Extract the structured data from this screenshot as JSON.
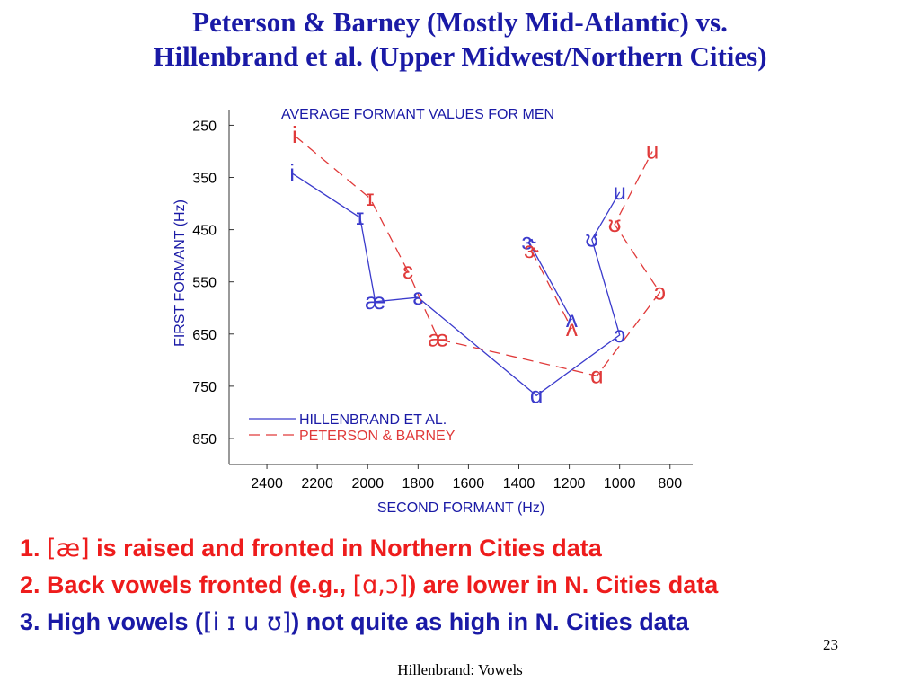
{
  "slide": {
    "title_line1": "Peterson & Barney (Mostly Mid-Atlantic) vs.",
    "title_line2": "Hillenbrand et al. (Upper Midwest/Northern Cities)",
    "bullets": [
      {
        "pre": "1. ",
        "ipa1": "[æ]",
        "mid": " is raised and fronted in Northern Cities data",
        "ipa2": "",
        "post": ""
      },
      {
        "pre": "2. Back vowels fronted (e.g., ",
        "ipa1": "[ɑ,ɔ]",
        "mid": ") are lower in N. Cities data",
        "ipa2": "",
        "post": ""
      },
      {
        "pre": "3. High vowels (",
        "ipa1": "[i ɪ u ʊ]",
        "mid": ") not quite as high in N. Cities data",
        "ipa2": "",
        "post": ""
      }
    ],
    "page_number": "23",
    "footer": "Hillenbrand: Vowels"
  },
  "chart_data": {
    "type": "line",
    "title": "AVERAGE FORMANT VALUES FOR MEN",
    "xlabel": "SECOND FORMANT (Hz)",
    "ylabel": "FIRST FORMANT (Hz)",
    "x_reversed": true,
    "y_reversed": true,
    "xlim": [
      2550,
      710
    ],
    "ylim": [
      220,
      900
    ],
    "xticks": [
      2400,
      2200,
      2000,
      1800,
      1600,
      1400,
      1200,
      1000,
      800
    ],
    "yticks": [
      250,
      350,
      450,
      550,
      650,
      750,
      850
    ],
    "grid": false,
    "legend_position": "bottom-left",
    "colors": {
      "hillenbrand": "#3b3bcc",
      "peterson_barney": "#e03a3a",
      "axis_text": "#1a1aa6",
      "tick_text": "#000000"
    },
    "series": [
      {
        "name": "HILLENBRAND ET AL.",
        "style": "solid",
        "segments": [
          [
            {
              "vowel": "i",
              "f2": 2300,
              "f1": 342
            },
            {
              "vowel": "ɪ",
              "f2": 2030,
              "f1": 427
            },
            {
              "vowel": "æ",
              "f2": 1970,
              "f1": 588
            },
            {
              "vowel": "ɛ",
              "f2": 1800,
              "f1": 580
            },
            {
              "vowel": "ɑ",
              "f2": 1330,
              "f1": 768
            },
            {
              "vowel": "ɔ",
              "f2": 1000,
              "f1": 652
            },
            {
              "vowel": "ʊ",
              "f2": 1110,
              "f1": 469
            },
            {
              "vowel": "u",
              "f2": 1000,
              "f1": 378
            }
          ],
          [
            {
              "vowel": "ɝ",
              "f2": 1360,
              "f1": 474
            },
            {
              "vowel": "ʌ",
              "f2": 1190,
              "f1": 623
            }
          ]
        ]
      },
      {
        "name": "PETERSON & BARNEY",
        "style": "dashed",
        "segments": [
          [
            {
              "vowel": "i",
              "f2": 2290,
              "f1": 270
            },
            {
              "vowel": "ɪ",
              "f2": 1990,
              "f1": 390
            },
            {
              "vowel": "ɛ",
              "f2": 1840,
              "f1": 530
            },
            {
              "vowel": "æ",
              "f2": 1720,
              "f1": 660
            },
            {
              "vowel": "ɑ",
              "f2": 1090,
              "f1": 730
            },
            {
              "vowel": "ɔ",
              "f2": 840,
              "f1": 570
            },
            {
              "vowel": "ʊ",
              "f2": 1020,
              "f1": 440
            },
            {
              "vowel": "u",
              "f2": 870,
              "f1": 300
            }
          ],
          [
            {
              "vowel": "ɝ",
              "f2": 1350,
              "f1": 490
            },
            {
              "vowel": "ʌ",
              "f2": 1190,
              "f1": 640
            }
          ]
        ]
      }
    ]
  }
}
